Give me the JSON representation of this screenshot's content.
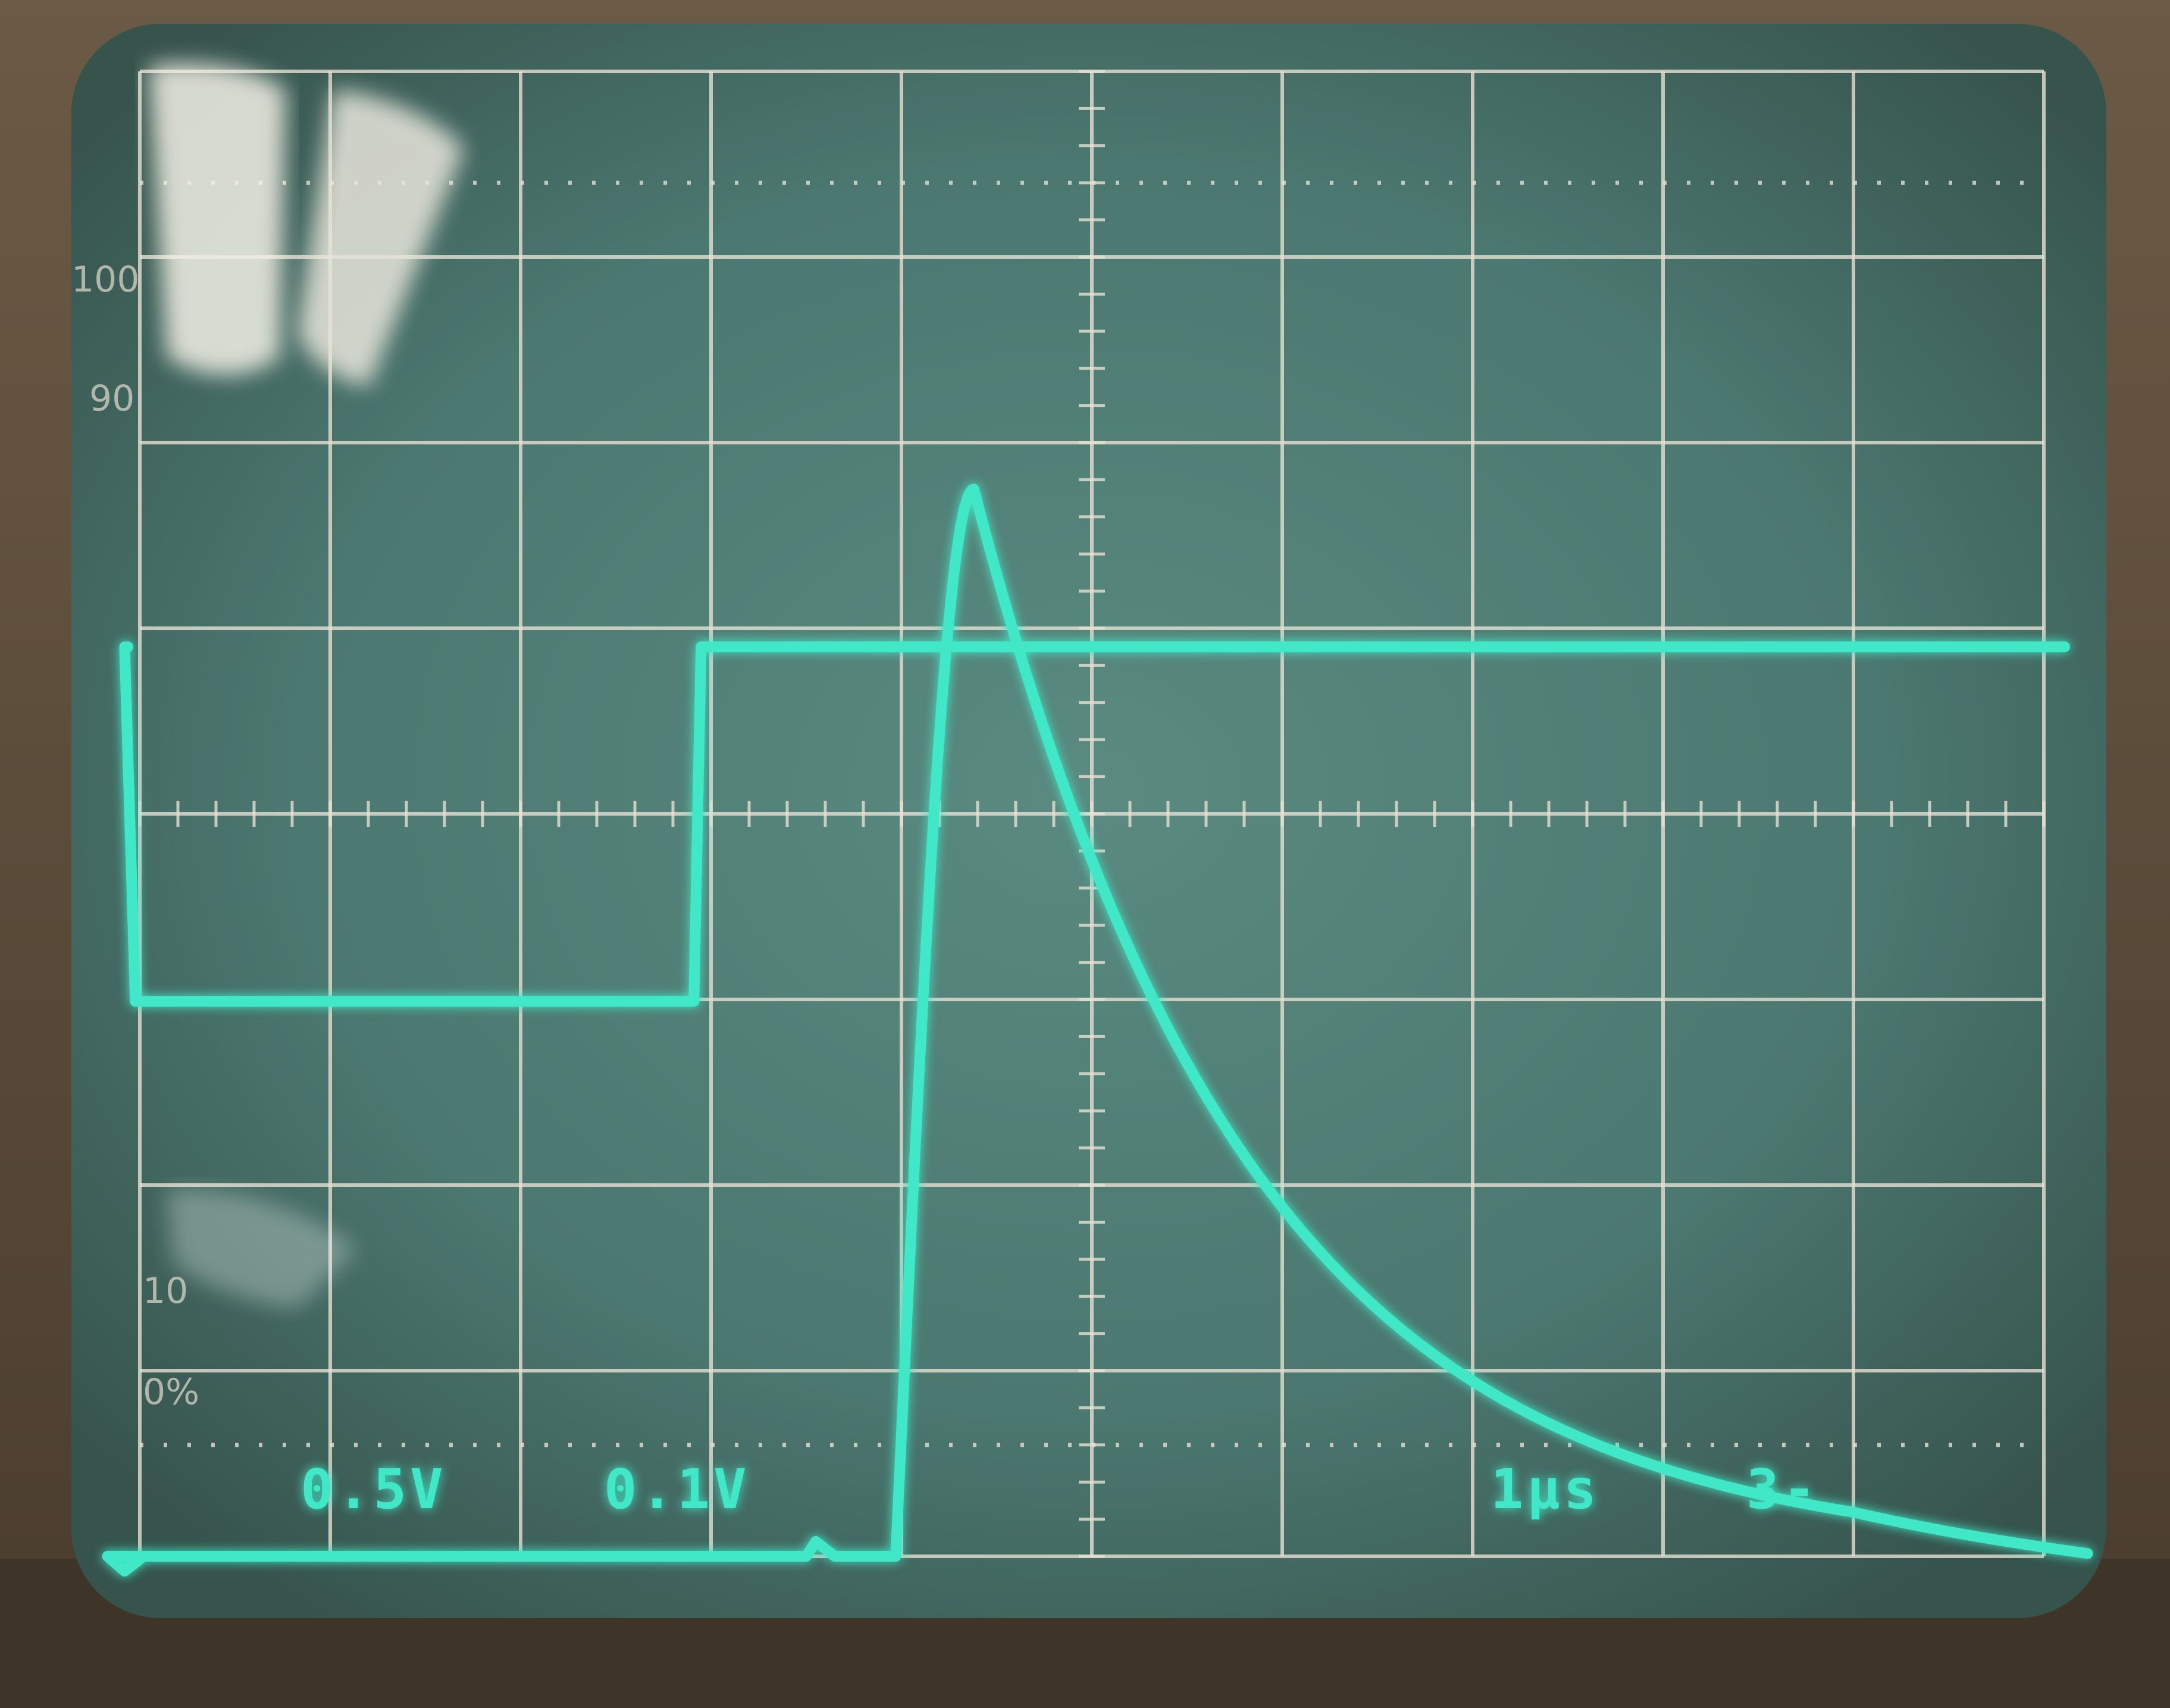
{
  "graticule": {
    "percent_marks": [
      "100",
      "90",
      "10",
      "0%"
    ]
  },
  "readouts": {
    "ch1_scale": "0.5V",
    "ch2_scale": "0.1V",
    "timebase": "1μs",
    "trigger": "3-"
  },
  "colors": {
    "trace": "#3fe8c8",
    "screen": "#4f7c74",
    "grid": "#e6e0d2",
    "bezel": "#5a4c3c"
  },
  "traces": [
    {
      "channel": "ch1",
      "shape": "gate-pulse",
      "y_high_div": 4.9,
      "y_low_div": 2.99,
      "fall_time_div": -0.08,
      "rise_time_div": 2.91
    },
    {
      "channel": "ch2",
      "shape": "spike-with-exponential-decay",
      "baseline_div": 0.0,
      "rise_start_time_div": 3.97,
      "peak_time_div": 4.38,
      "peak_div": 5.75,
      "decay_tau_div": 1.45,
      "end_time_div": 10.25,
      "end_level_div": 0.0
    }
  ]
}
